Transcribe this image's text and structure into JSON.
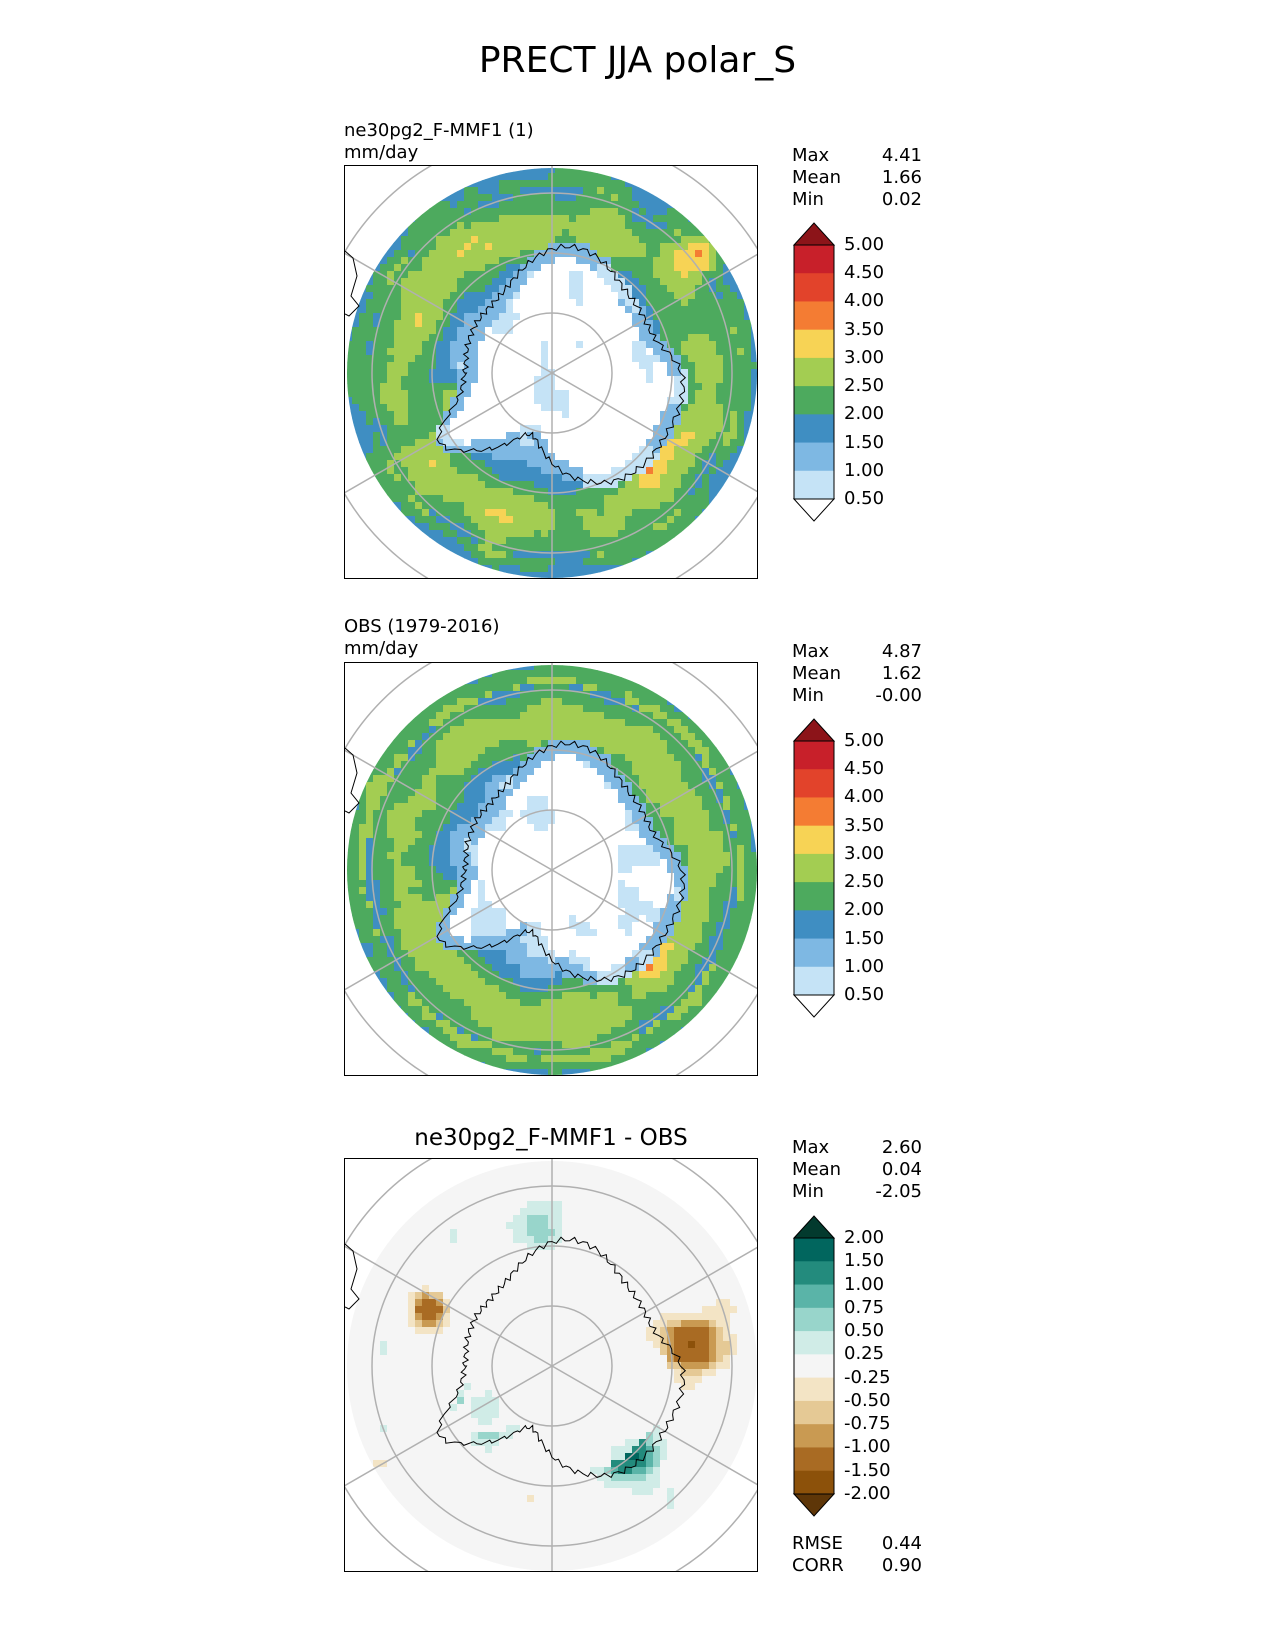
{
  "title": "PRECT JJA polar_S",
  "panels": [
    {
      "id": "test",
      "title_lines": [
        "ne30pg2_F-MMF1 (1)",
        "mm/day"
      ],
      "stats": [
        {
          "label": "Max",
          "value": "4.41"
        },
        {
          "label": "Mean",
          "value": "1.66"
        },
        {
          "label": "Min",
          "value": "0.02"
        }
      ],
      "colorbar": {
        "levels": [
          "5.00",
          "4.50",
          "4.00",
          "3.50",
          "3.00",
          "2.50",
          "2.00",
          "1.50",
          "1.00",
          "0.50"
        ],
        "colors": [
          "#8c1419",
          "#c8202a",
          "#e2432b",
          "#f47c33",
          "#f7d355",
          "#a3cd52",
          "#4daa5e",
          "#3f8ec2",
          "#7eb8e3",
          "#c5e3f6",
          "#ffffff"
        ]
      }
    },
    {
      "id": "reference",
      "title_lines": [
        "OBS (1979-2016)",
        "mm/day"
      ],
      "stats": [
        {
          "label": "Max",
          "value": "4.87"
        },
        {
          "label": "Mean",
          "value": "1.62"
        },
        {
          "label": "Min",
          "value": "-0.00"
        }
      ],
      "colorbar": {
        "levels": [
          "5.00",
          "4.50",
          "4.00",
          "3.50",
          "3.00",
          "2.50",
          "2.00",
          "1.50",
          "1.00",
          "0.50"
        ],
        "colors": [
          "#8c1419",
          "#c8202a",
          "#e2432b",
          "#f47c33",
          "#f7d355",
          "#a3cd52",
          "#4daa5e",
          "#3f8ec2",
          "#7eb8e3",
          "#c5e3f6",
          "#ffffff"
        ]
      }
    },
    {
      "id": "difference",
      "title": "ne30pg2_F-MMF1 - OBS",
      "stats": [
        {
          "label": "Max",
          "value": "2.60"
        },
        {
          "label": "Mean",
          "value": "0.04"
        },
        {
          "label": "Min",
          "value": "-2.05"
        }
      ],
      "extra_stats": [
        {
          "label": "RMSE",
          "value": "0.44"
        },
        {
          "label": "CORR",
          "value": "0.90"
        }
      ],
      "colorbar": {
        "levels": [
          "2.00",
          "1.50",
          "1.00",
          "0.75",
          "0.50",
          "0.25",
          "-0.25",
          "-0.50",
          "-0.75",
          "-1.00",
          "-1.50",
          "-2.00"
        ],
        "colors": [
          "#033a2e",
          "#01665e",
          "#238b7d",
          "#5ab4a8",
          "#98d5cb",
          "#d0ece7",
          "#f5f5f5",
          "#f3e4c5",
          "#e5c995",
          "#c99a52",
          "#a96b23",
          "#8c510a",
          "#5e3608"
        ]
      }
    }
  ],
  "chart_data": {
    "type": "heatmap",
    "title": "PRECT JJA polar_S",
    "projection": "south polar stereographic",
    "units": "mm/day",
    "maps": [
      {
        "name": "ne30pg2_F-MMF1 (1)",
        "max": 4.41,
        "mean": 1.66,
        "min": 0.02
      },
      {
        "name": "OBS (1979-2016)",
        "max": 4.87,
        "mean": 1.62,
        "min": -0.0
      },
      {
        "name": "ne30pg2_F-MMF1 - OBS",
        "max": 2.6,
        "mean": 0.04,
        "min": -2.05,
        "rmse": 0.44,
        "corr": 0.9
      }
    ]
  }
}
